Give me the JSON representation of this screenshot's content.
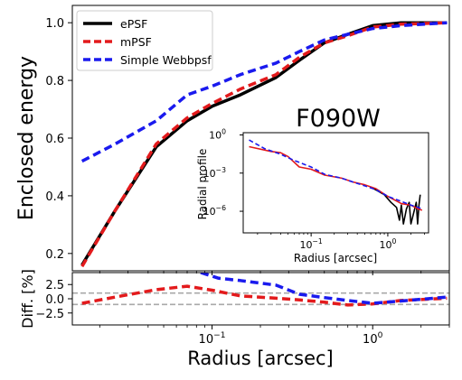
{
  "chart_data": [
    {
      "type": "line",
      "panel": "main",
      "title": "",
      "annotation": "F090W",
      "xlabel": "",
      "ylabel": "Enclosed energy",
      "xscale": "log",
      "xlim": [
        0.0135,
        3.0
      ],
      "ylim": [
        0.14,
        1.06
      ],
      "yticks": [
        0.2,
        0.4,
        0.6,
        0.8,
        1.0
      ],
      "ytick_labels": [
        "0.2",
        "0.4",
        "0.6",
        "0.8",
        "1.0"
      ],
      "grid": false,
      "legend": "top-left",
      "series": [
        {
          "name": "ePSF",
          "color": "#000000",
          "style": "solid",
          "points": [
            [
              0.0155,
              0.16
            ],
            [
              0.025,
              0.35
            ],
            [
              0.045,
              0.57
            ],
            [
              0.07,
              0.66
            ],
            [
              0.1,
              0.71
            ],
            [
              0.15,
              0.75
            ],
            [
              0.25,
              0.81
            ],
            [
              0.35,
              0.87
            ],
            [
              0.5,
              0.93
            ],
            [
              0.7,
              0.96
            ],
            [
              1.0,
              0.99
            ],
            [
              1.5,
              1.0
            ],
            [
              2.9,
              1.0
            ]
          ]
        },
        {
          "name": "mPSF",
          "color": "#e31a1c",
          "style": "dashed",
          "points": [
            [
              0.0155,
              0.155
            ],
            [
              0.025,
              0.35
            ],
            [
              0.045,
              0.58
            ],
            [
              0.07,
              0.67
            ],
            [
              0.1,
              0.72
            ],
            [
              0.15,
              0.77
            ],
            [
              0.25,
              0.82
            ],
            [
              0.35,
              0.88
            ],
            [
              0.5,
              0.93
            ],
            [
              0.7,
              0.955
            ],
            [
              1.0,
              0.985
            ],
            [
              1.5,
              0.995
            ],
            [
              2.9,
              1.0
            ]
          ]
        },
        {
          "name": "Simple Webbpsf",
          "color": "#1a1aee",
          "style": "dashed",
          "points": [
            [
              0.0155,
              0.52
            ],
            [
              0.025,
              0.58
            ],
            [
              0.045,
              0.66
            ],
            [
              0.07,
              0.75
            ],
            [
              0.1,
              0.78
            ],
            [
              0.15,
              0.82
            ],
            [
              0.25,
              0.86
            ],
            [
              0.35,
              0.9
            ],
            [
              0.5,
              0.94
            ],
            [
              0.7,
              0.96
            ],
            [
              1.0,
              0.98
            ],
            [
              1.5,
              0.99
            ],
            [
              2.9,
              1.0
            ]
          ]
        }
      ]
    },
    {
      "type": "line",
      "panel": "inset",
      "title": "",
      "xlabel": "Radius [arcsec]",
      "ylabel": "Radial profile",
      "xscale": "log",
      "yscale": "log",
      "xlim": [
        0.013,
        3.4
      ],
      "ylim": [
        2e-08,
        1.5
      ],
      "xticks": [
        0.1,
        1.0
      ],
      "xtick_labels": [
        "10",
        "10"
      ],
      "xtick_exponents": [
        "−1",
        "0"
      ],
      "yticks": [
        1,
        0.001,
        1e-06
      ],
      "ytick_labels": [
        "10",
        "10",
        "10"
      ],
      "ytick_exponents": [
        "0",
        "−3",
        "−6"
      ],
      "series": [
        {
          "name": "ePSF",
          "color": "#000000",
          "style": "solid",
          "points": [
            [
              0.6,
              8e-05
            ],
            [
              0.9,
              2e-05
            ],
            [
              1.1,
              5e-06
            ],
            [
              1.3,
              2e-06
            ],
            [
              1.42,
              2e-07
            ],
            [
              1.5,
              3e-06
            ],
            [
              1.6,
              1e-07
            ],
            [
              1.75,
              1.5e-06
            ],
            [
              1.9,
              5e-06
            ],
            [
              2.0,
              1e-07
            ],
            [
              2.2,
              1e-06
            ],
            [
              2.35,
              5e-06
            ],
            [
              2.45,
              1e-07
            ],
            [
              2.55,
              3e-06
            ],
            [
              2.65,
              2e-05
            ]
          ]
        },
        {
          "name": "mPSF",
          "color": "#e31a1c",
          "style": "solid",
          "points": [
            [
              0.0155,
              0.12
            ],
            [
              0.03,
              0.05
            ],
            [
              0.04,
              0.04
            ],
            [
              0.05,
              0.02
            ],
            [
              0.07,
              0.003
            ],
            [
              0.1,
              0.002
            ],
            [
              0.15,
              0.0007
            ],
            [
              0.25,
              0.0004
            ],
            [
              0.35,
              0.0002
            ],
            [
              0.5,
              0.00012
            ],
            [
              0.7,
              6e-05
            ],
            [
              1.0,
              1.5e-05
            ],
            [
              1.5,
              4e-06
            ],
            [
              2.0,
              3e-06
            ],
            [
              2.5,
              1.5e-06
            ],
            [
              2.8,
              1.2e-06
            ]
          ]
        },
        {
          "name": "Simple Webbpsf",
          "color": "#1a1aee",
          "style": "dashed",
          "points": [
            [
              0.0155,
              0.4
            ],
            [
              0.025,
              0.08
            ],
            [
              0.04,
              0.03
            ],
            [
              0.06,
              0.01
            ],
            [
              0.1,
              0.003
            ],
            [
              0.15,
              0.0008
            ],
            [
              0.25,
              0.0004
            ],
            [
              0.35,
              0.0002
            ],
            [
              0.5,
              0.0001
            ],
            [
              0.7,
              5e-05
            ],
            [
              1.0,
              1.5e-05
            ],
            [
              1.5,
              6e-06
            ],
            [
              2.0,
              3e-06
            ],
            [
              2.5,
              2e-06
            ],
            [
              2.8,
              1.5e-06
            ]
          ]
        }
      ]
    },
    {
      "type": "line",
      "panel": "difference",
      "title": "",
      "xlabel": "Radius [arcsec]",
      "ylabel": "Diff. [%]",
      "xscale": "log",
      "xlim": [
        0.0135,
        3.0
      ],
      "ylim": [
        -4.6,
        4.6
      ],
      "xticks": [
        0.1,
        1.0
      ],
      "xtick_labels": [
        "10",
        "10"
      ],
      "xtick_exponents": [
        "−1",
        "0"
      ],
      "yticks": [
        2.5,
        0.0,
        -2.5
      ],
      "ytick_labels": [
        "2.5",
        "0.0",
        "−2.5"
      ],
      "reference_lines": [
        1.0,
        -1.0
      ],
      "series": [
        {
          "name": "mPSF",
          "color": "#e31a1c",
          "style": "dashed",
          "points": [
            [
              0.0155,
              -0.8
            ],
            [
              0.025,
              0.3
            ],
            [
              0.045,
              1.6
            ],
            [
              0.07,
              2.2
            ],
            [
              0.1,
              1.5
            ],
            [
              0.15,
              0.5
            ],
            [
              0.25,
              0.1
            ],
            [
              0.35,
              -0.2
            ],
            [
              0.5,
              -0.6
            ],
            [
              0.7,
              -1.1
            ],
            [
              1.0,
              -0.9
            ],
            [
              1.5,
              -0.3
            ],
            [
              2.9,
              0.1
            ]
          ]
        },
        {
          "name": "Simple Webbpsf",
          "color": "#1a1aee",
          "style": "dashed",
          "points": [
            [
              0.085,
              4.6
            ],
            [
              0.11,
              3.6
            ],
            [
              0.15,
              3.2
            ],
            [
              0.25,
              2.4
            ],
            [
              0.35,
              0.8
            ],
            [
              0.5,
              0.2
            ],
            [
              0.7,
              -0.3
            ],
            [
              1.0,
              -0.8
            ],
            [
              1.5,
              -0.4
            ],
            [
              2.9,
              0.3
            ]
          ]
        }
      ]
    }
  ]
}
